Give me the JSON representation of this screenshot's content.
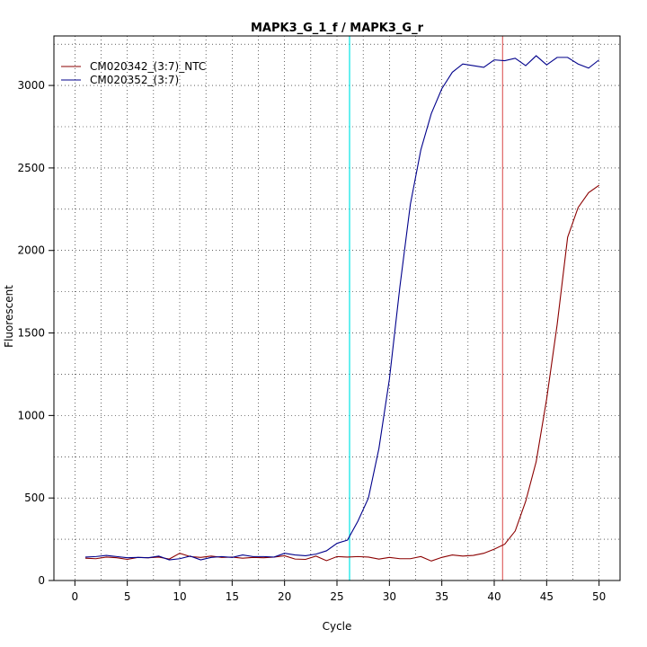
{
  "chart_data": {
    "type": "line",
    "title": "MAPK3_G_1_f / MAPK3_G_r",
    "xlabel": "Cycle",
    "ylabel": "Fluorescent",
    "xlim": [
      -2,
      52
    ],
    "ylim": [
      0,
      3300
    ],
    "x_ticks": [
      0,
      5,
      10,
      15,
      20,
      25,
      30,
      35,
      40,
      45,
      50
    ],
    "y_ticks": [
      0,
      500,
      1000,
      1500,
      2000,
      2500,
      3000
    ],
    "grid": true,
    "legend_position": "top-left",
    "vlines": [
      {
        "x": 26.2,
        "color": "#00e5e5"
      },
      {
        "x": 40.8,
        "color": "#e06666"
      }
    ],
    "x": [
      1,
      2,
      3,
      4,
      5,
      6,
      7,
      8,
      9,
      10,
      11,
      12,
      13,
      14,
      15,
      16,
      17,
      18,
      19,
      20,
      21,
      22,
      23,
      24,
      25,
      26,
      27,
      28,
      29,
      30,
      31,
      32,
      33,
      34,
      35,
      36,
      37,
      38,
      39,
      40,
      41,
      42,
      43,
      44,
      45,
      46,
      47,
      48,
      49,
      50
    ],
    "series": [
      {
        "name": "CM020342_(3:7)_NTC",
        "color": "#8b0000",
        "values": [
          135,
          132,
          142,
          138,
          128,
          140,
          138,
          142,
          130,
          165,
          145,
          140,
          148,
          140,
          142,
          135,
          140,
          138,
          142,
          150,
          130,
          128,
          148,
          120,
          145,
          142,
          145,
          142,
          130,
          140,
          132,
          132,
          145,
          118,
          140,
          155,
          148,
          152,
          165,
          190,
          220,
          300,
          480,
          720,
          1100,
          1550,
          2080,
          2260,
          2350,
          2395
        ]
      },
      {
        "name": "CM020352_(3:7)",
        "color": "#00008b",
        "values": [
          142,
          145,
          152,
          145,
          138,
          140,
          138,
          148,
          125,
          132,
          148,
          125,
          140,
          145,
          140,
          155,
          145,
          145,
          142,
          165,
          155,
          150,
          160,
          180,
          225,
          245,
          360,
          500,
          800,
          1220,
          1780,
          2280,
          2610,
          2830,
          2980,
          3080,
          3130,
          3120,
          3110,
          3155,
          3150,
          3165,
          3120,
          3180,
          3125,
          3170,
          3170,
          3130,
          3105,
          3155
        ]
      }
    ]
  }
}
